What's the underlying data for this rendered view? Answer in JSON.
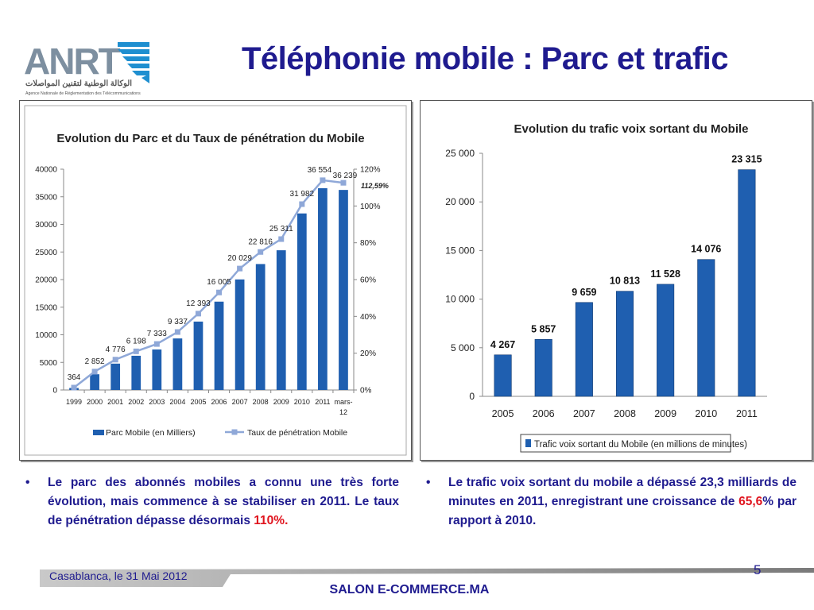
{
  "slide": {
    "title": "Téléphonie mobile : Parc et trafic",
    "logo_text": "ANRT",
    "logo_arabic": "الوكالة الوطنية لتقنين المواصلات",
    "logo_subtitle": "Agence Nationale de Réglementation des Télécommunications",
    "footer_date": "Casablanca, le 31 Mai 2012",
    "footer_brand": "SALON E-COMMERCE.MA",
    "page_number": "5",
    "bullet1": {
      "text": "Le parc des abonnés mobiles a connu une très forte évolution, mais commence à se stabiliser en 2011. Le taux de pénétration dépasse désormais ",
      "highlight": "110%."
    },
    "bullet2": {
      "text_before": "Le trafic voix sortant du mobile a dépassé 23,3 milliards de minutes en 2011, enregistrant une croissance de ",
      "highlight": "65,6",
      "text_after": "% par rapport à 2010."
    },
    "colors": {
      "title_blue": "#1f1b8f",
      "bar_blue": "#1f5fb0",
      "line_light_blue": "#8fa8d8",
      "highlight_red": "#e0141e"
    }
  },
  "chart_data": [
    {
      "type": "bar",
      "title": "Evolution du Parc et du Taux de pénétration du Mobile",
      "categories": [
        "1999",
        "2000",
        "2001",
        "2002",
        "2003",
        "2004",
        "2005",
        "2006",
        "2007",
        "2008",
        "2009",
        "2010",
        "2011",
        "mars-12"
      ],
      "series": [
        {
          "name": "Parc Mobile (en Milliers)",
          "type": "bar",
          "axis": "left",
          "values": [
            364,
            2852,
            4776,
            6198,
            7333,
            9337,
            12393,
            16005,
            20029,
            22816,
            25311,
            31982,
            36554,
            36239
          ]
        },
        {
          "name": "Taux de pénétration Mobile",
          "type": "line",
          "axis": "right",
          "values": [
            1.3,
            10,
            16.5,
            21,
            25,
            31.5,
            41.5,
            53,
            66,
            75,
            82,
            101,
            114,
            112.59
          ]
        }
      ],
      "data_labels": [
        "364",
        "2 852",
        "4 776",
        "6 198",
        "7 333",
        "9 337",
        "12 393",
        "16 005",
        "20 029",
        "22 816",
        "25 311",
        "31 982",
        "36 554",
        "36 239"
      ],
      "annotation": "112,59%",
      "ylim": [
        0,
        40000
      ],
      "yticks": [
        "0",
        "5000",
        "10000",
        "15000",
        "20000",
        "25000",
        "30000",
        "35000",
        "40000"
      ],
      "y2lim": [
        0,
        120
      ],
      "y2ticks": [
        "0%",
        "20%",
        "40%",
        "60%",
        "80%",
        "100%",
        "120%"
      ],
      "legend_position": "bottom"
    },
    {
      "type": "bar",
      "title": "Evolution du trafic voix sortant du Mobile",
      "categories": [
        "2005",
        "2006",
        "2007",
        "2008",
        "2009",
        "2010",
        "2011"
      ],
      "series": [
        {
          "name": "Trafic voix sortant du Mobile (en millions de minutes)",
          "values": [
            4267,
            5857,
            9659,
            10813,
            11528,
            14076,
            23315
          ]
        }
      ],
      "data_labels": [
        "4 267",
        "5 857",
        "9 659",
        "10 813",
        "11 528",
        "14 076",
        "23 315"
      ],
      "ylim": [
        0,
        25000
      ],
      "yticks": [
        "0",
        "5 000",
        "10 000",
        "15 000",
        "20 000",
        "25 000"
      ],
      "legend_position": "bottom"
    }
  ]
}
